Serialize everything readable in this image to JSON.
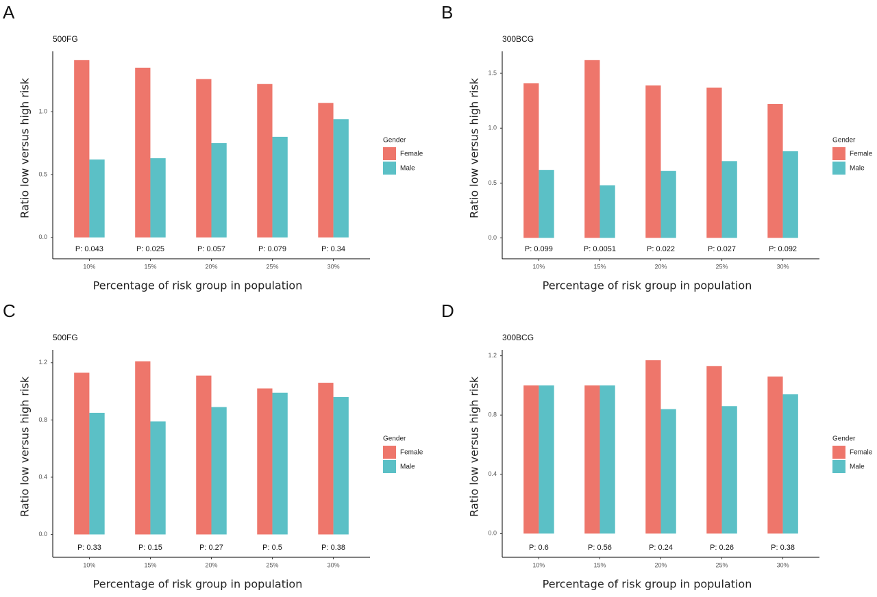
{
  "chart_data": [
    {
      "type": "bar",
      "panel": "A",
      "title": "500FG",
      "x_label": "Percentage of risk group in population",
      "y_label": "Ratio low versus high risk",
      "categories": [
        "10%",
        "15%",
        "20%",
        "25%",
        "30%"
      ],
      "series": [
        {
          "name": "Female",
          "color": "#ee766b",
          "values": [
            1.41,
            1.35,
            1.26,
            1.22,
            1.07
          ]
        },
        {
          "name": "Male",
          "color": "#5bc0c6",
          "values": [
            0.62,
            0.63,
            0.75,
            0.8,
            0.94
          ]
        }
      ],
      "annotations": [
        "P: 0.043",
        "P: 0.025",
        "P: 0.057",
        "P: 0.079",
        "P: 0.34"
      ],
      "legend_title": "Gender",
      "ylim": [
        -0.17,
        1.48
      ],
      "yticks": [
        {
          "value": 0,
          "label": "0.0"
        },
        0.5,
        {
          "value": 1,
          "label": "1.0"
        }
      ]
    },
    {
      "type": "bar",
      "panel": "B",
      "title": "300BCG",
      "x_label": "Percentage of risk group in population",
      "y_label": "Ratio low versus high risk",
      "categories": [
        "10%",
        "15%",
        "20%",
        "25%",
        "30%"
      ],
      "series": [
        {
          "name": "Female",
          "color": "#ee766b",
          "values": [
            1.41,
            1.62,
            1.39,
            1.37,
            1.22
          ]
        },
        {
          "name": "Male",
          "color": "#5bc0c6",
          "values": [
            0.62,
            0.48,
            0.61,
            0.7,
            0.79
          ]
        }
      ],
      "annotations": [
        "P: 0.099",
        "P: 0.0051",
        "P: 0.022",
        "P: 0.027",
        "P: 0.092"
      ],
      "legend_title": "Gender",
      "ylim": [
        -0.19,
        1.7
      ],
      "yticks": [
        {
          "value": 0,
          "label": "0.0"
        },
        0.5,
        {
          "value": 1,
          "label": "1.0"
        },
        1.5
      ]
    },
    {
      "type": "bar",
      "panel": "C",
      "title": "500FG",
      "x_label": "Percentage of risk group in population",
      "y_label": "Ratio low versus high risk",
      "categories": [
        "10%",
        "15%",
        "20%",
        "25%",
        "30%"
      ],
      "series": [
        {
          "name": "Female",
          "color": "#ee766b",
          "values": [
            1.13,
            1.21,
            1.11,
            1.02,
            1.06
          ]
        },
        {
          "name": "Male",
          "color": "#5bc0c6",
          "values": [
            0.85,
            0.79,
            0.89,
            0.99,
            0.96
          ]
        }
      ],
      "annotations": [
        "P: 0.33",
        "P: 0.15",
        "P: 0.27",
        "P: 0.5",
        "P: 0.38"
      ],
      "legend_title": "Gender",
      "ylim": [
        -0.16,
        1.29
      ],
      "yticks": [
        {
          "value": 0,
          "label": "0.0"
        },
        0.4,
        0.8,
        1.2
      ]
    },
    {
      "type": "bar",
      "panel": "D",
      "title": "300BCG",
      "x_label": "Percentage of risk group in population",
      "y_label": "Ratio low versus high risk",
      "categories": [
        "10%",
        "15%",
        "20%",
        "25%",
        "30%"
      ],
      "series": [
        {
          "name": "Female",
          "color": "#ee766b",
          "values": [
            1.0,
            1.0,
            1.17,
            1.13,
            1.06
          ]
        },
        {
          "name": "Male",
          "color": "#5bc0c6",
          "values": [
            1.0,
            1.0,
            0.84,
            0.86,
            0.94
          ]
        }
      ],
      "annotations": [
        "P: 0.6",
        "P: 0.56",
        "P: 0.24",
        "P: 0.26",
        "P: 0.38"
      ],
      "legend_title": "Gender",
      "ylim": [
        -0.16,
        1.24
      ],
      "yticks": [
        {
          "value": 0,
          "label": "0.0"
        },
        0.4,
        0.8,
        1.2
      ]
    }
  ]
}
